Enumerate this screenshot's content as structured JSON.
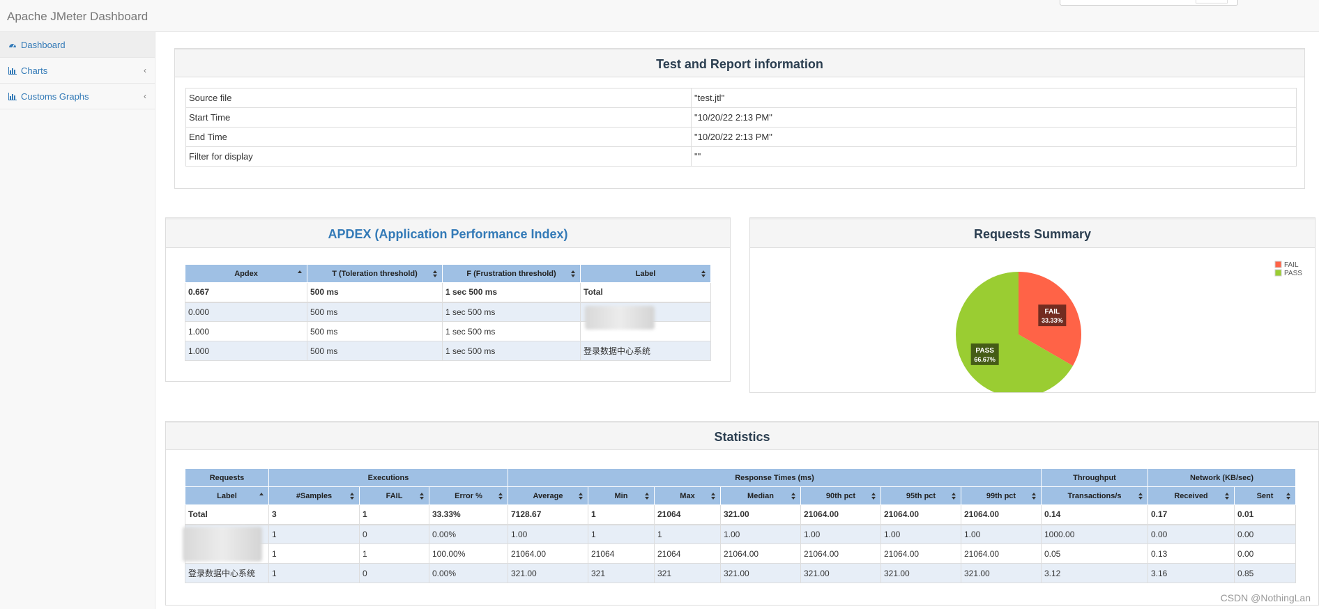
{
  "app": {
    "brand": "Apache JMeter Dashboard"
  },
  "sidebar": {
    "items": [
      {
        "label": "Dashboard",
        "icon": "dashboard-icon"
      },
      {
        "label": "Charts",
        "icon": "bar-chart-icon"
      },
      {
        "label": "Customs Graphs",
        "icon": "bar-chart-icon"
      }
    ],
    "arrow": "‹"
  },
  "test_info": {
    "title": "Test and Report information",
    "rows": [
      {
        "key": "Source file",
        "value": "\"test.jtl\""
      },
      {
        "key": "Start Time",
        "value": "\"10/20/22 2:13 PM\""
      },
      {
        "key": "End Time",
        "value": "\"10/20/22 2:13 PM\""
      },
      {
        "key": "Filter for display",
        "value": "\"\""
      }
    ]
  },
  "apdex": {
    "title": "APDEX (Application Performance Index)",
    "headers": [
      "Apdex",
      "T (Toleration threshold)",
      "F (Frustration threshold)",
      "Label"
    ],
    "rows": [
      [
        "0.667",
        "500 ms",
        "1 sec 500 ms",
        "Total"
      ],
      [
        "0.000",
        "500 ms",
        "1 sec 500 ms",
        ""
      ],
      [
        "1.000",
        "500 ms",
        "1 sec 500 ms",
        ""
      ],
      [
        "1.000",
        "500 ms",
        "1 sec 500 ms",
        "登录数据中心系统"
      ]
    ]
  },
  "requests_summary": {
    "title": "Requests Summary",
    "legend": [
      {
        "label": "FAIL",
        "color": "#ff6347"
      },
      {
        "label": "PASS",
        "color": "#9acd32"
      }
    ],
    "slice_labels": [
      {
        "name": "FAIL",
        "pct": "33.33%"
      },
      {
        "name": "PASS",
        "pct": "66.67%"
      }
    ]
  },
  "chart_data": {
    "type": "pie",
    "title": "Requests Summary",
    "series": [
      {
        "name": "FAIL",
        "value": 33.33,
        "color": "#ff6347"
      },
      {
        "name": "PASS",
        "value": 66.67,
        "color": "#9acd32"
      }
    ],
    "legend_position": "top-right"
  },
  "statistics": {
    "title": "Statistics",
    "group_headers": [
      "Requests",
      "Executions",
      "Response Times (ms)",
      "Throughput",
      "Network (KB/sec)"
    ],
    "headers": [
      "Label",
      "#Samples",
      "FAIL",
      "Error %",
      "Average",
      "Min",
      "Max",
      "Median",
      "90th pct",
      "95th pct",
      "99th pct",
      "Transactions/s",
      "Received",
      "Sent"
    ],
    "rows": [
      [
        "Total",
        "3",
        "1",
        "33.33%",
        "7128.67",
        "1",
        "21064",
        "321.00",
        "21064.00",
        "21064.00",
        "21064.00",
        "0.14",
        "0.17",
        "0.01"
      ],
      [
        "",
        "1",
        "0",
        "0.00%",
        "1.00",
        "1",
        "1",
        "1.00",
        "1.00",
        "1.00",
        "1.00",
        "1000.00",
        "0.00",
        "0.00"
      ],
      [
        "",
        "1",
        "1",
        "100.00%",
        "21064.00",
        "21064",
        "21064",
        "21064.00",
        "21064.00",
        "21064.00",
        "21064.00",
        "0.05",
        "0.13",
        "0.00"
      ],
      [
        "登录数据中心系统",
        "1",
        "0",
        "0.00%",
        "321.00",
        "321",
        "321",
        "321.00",
        "321.00",
        "321.00",
        "321.00",
        "3.12",
        "3.16",
        "0.85"
      ]
    ]
  },
  "watermark": "CSDN @NothingLan"
}
